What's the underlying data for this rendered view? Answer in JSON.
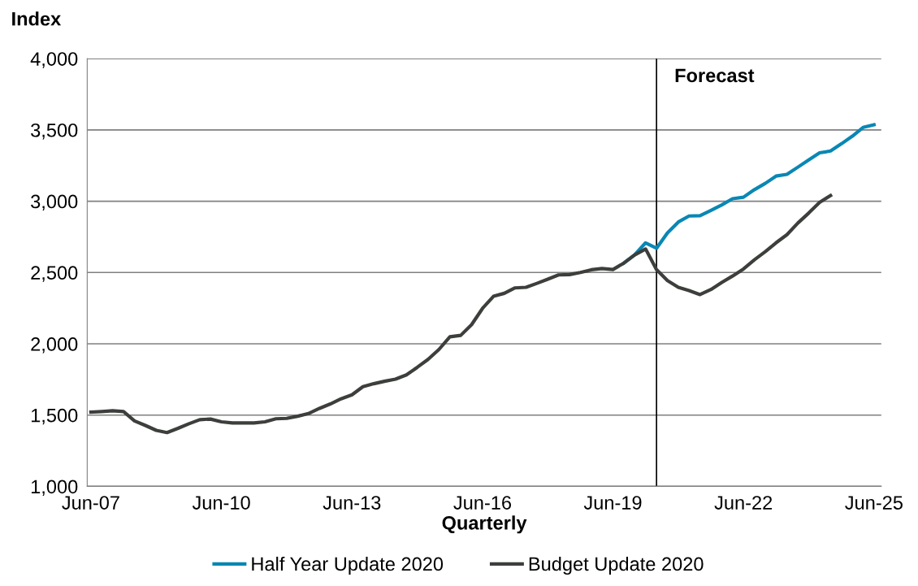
{
  "chart_data": {
    "type": "line",
    "ylabel": "Index",
    "xlabel": "Quarterly",
    "xlim": [
      "2007-05",
      "2025-08"
    ],
    "ylim": [
      1000,
      4000
    ],
    "xticks": [
      {
        "value": "2007-06",
        "label": "Jun-07"
      },
      {
        "value": "2010-06",
        "label": "Jun-10"
      },
      {
        "value": "2013-06",
        "label": "Jun-13"
      },
      {
        "value": "2016-06",
        "label": "Jun-16"
      },
      {
        "value": "2019-06",
        "label": "Jun-19"
      },
      {
        "value": "2022-06",
        "label": "Jun-22"
      },
      {
        "value": "2025-06",
        "label": "Jun-25"
      }
    ],
    "yticks": [
      {
        "value": 1000,
        "label": "1,000"
      },
      {
        "value": 1500,
        "label": "1,500"
      },
      {
        "value": 2000,
        "label": "2,000"
      },
      {
        "value": 2500,
        "label": "2,500"
      },
      {
        "value": 3000,
        "label": "3,000"
      },
      {
        "value": 3500,
        "label": "3,500"
      },
      {
        "value": 4000,
        "label": "4,000"
      }
    ],
    "grid": "y",
    "legend": "bottom",
    "marker": "none",
    "line_style": "solid",
    "ref_lines": [
      {
        "axis": "x",
        "value": "2020-06",
        "label": "Forecast",
        "color": "#000000"
      }
    ],
    "series": [
      {
        "name": "Half Year Update 2020",
        "color": "#0a87b4",
        "x": [
          "2019-09",
          "2019-12",
          "2020-03",
          "2020-06",
          "2020-09",
          "2020-12",
          "2021-03",
          "2021-06",
          "2021-09",
          "2021-12",
          "2022-03",
          "2022-06",
          "2022-09",
          "2022-12",
          "2023-03",
          "2023-06",
          "2023-09",
          "2023-12",
          "2024-03",
          "2024-06",
          "2024-09",
          "2024-12",
          "2025-03",
          "2025-06"
        ],
        "values": [
          2566,
          2625,
          2708,
          2670,
          2778,
          2854,
          2896,
          2898,
          2936,
          2974,
          3017,
          3028,
          3081,
          3125,
          3176,
          3188,
          3239,
          3290,
          3339,
          3352,
          3403,
          3456,
          3517,
          3536
        ]
      },
      {
        "name": "Budget Update 2020",
        "color": "#3c3f3b",
        "x": [
          "2007-06",
          "2007-09",
          "2007-12",
          "2008-03",
          "2008-06",
          "2008-09",
          "2008-12",
          "2009-03",
          "2009-06",
          "2009-09",
          "2009-12",
          "2010-03",
          "2010-06",
          "2010-09",
          "2010-12",
          "2011-03",
          "2011-06",
          "2011-09",
          "2011-12",
          "2012-03",
          "2012-06",
          "2012-09",
          "2012-12",
          "2013-03",
          "2013-06",
          "2013-09",
          "2013-12",
          "2014-03",
          "2014-06",
          "2014-09",
          "2014-12",
          "2015-03",
          "2015-06",
          "2015-09",
          "2015-12",
          "2016-03",
          "2016-06",
          "2016-09",
          "2016-12",
          "2017-03",
          "2017-06",
          "2017-09",
          "2017-12",
          "2018-03",
          "2018-06",
          "2018-09",
          "2018-12",
          "2019-03",
          "2019-06",
          "2019-09",
          "2019-12",
          "2020-03",
          "2020-06",
          "2020-09",
          "2020-12",
          "2021-03",
          "2021-06",
          "2021-09",
          "2021-12",
          "2022-03",
          "2022-06",
          "2022-09",
          "2022-12",
          "2023-03",
          "2023-06",
          "2023-09",
          "2023-12",
          "2024-03",
          "2024-06"
        ],
        "values": [
          1521,
          1525,
          1530,
          1525,
          1459,
          1427,
          1393,
          1377,
          1407,
          1439,
          1468,
          1472,
          1453,
          1445,
          1445,
          1445,
          1453,
          1474,
          1477,
          1492,
          1511,
          1547,
          1578,
          1614,
          1642,
          1699,
          1720,
          1737,
          1752,
          1782,
          1835,
          1890,
          1960,
          2049,
          2059,
          2134,
          2248,
          2333,
          2354,
          2392,
          2396,
          2424,
          2453,
          2483,
          2485,
          2500,
          2519,
          2528,
          2521,
          2566,
          2623,
          2665,
          2520,
          2443,
          2396,
          2373,
          2345,
          2381,
          2430,
          2475,
          2525,
          2589,
          2646,
          2708,
          2765,
          2847,
          2917,
          2992,
          3040
        ]
      }
    ]
  }
}
